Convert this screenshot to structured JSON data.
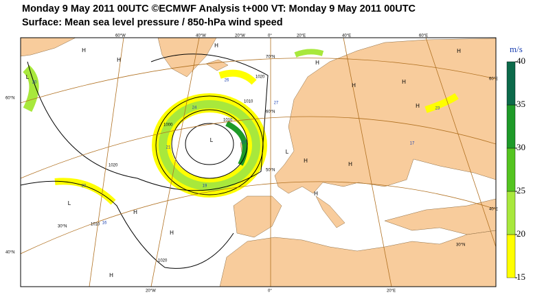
{
  "header": {
    "line1": "Monday 9 May 2011 00UTC ©ECMWF Analysis t+000 VT: Monday 9 May 2011 00UTC",
    "line2": "Surface: Mean sea level pressure / 850-hPa wind speed"
  },
  "colorbar": {
    "unit": "m/s",
    "ticks": [
      15,
      20,
      25,
      30,
      35,
      40
    ],
    "colors": [
      "#ffff00",
      "#a8e83c",
      "#54c420",
      "#1e9a28",
      "#0c6a4a"
    ]
  },
  "map": {
    "graticule": [
      "60°W",
      "40°W",
      "20°W",
      "0°",
      "20°E",
      "40°E",
      "60°E",
      "20°W",
      "0°",
      "20°E",
      "60°N",
      "40°N",
      "60°E",
      "40°E",
      "70°N",
      "60°N",
      "50°N",
      "30°N",
      "30°N"
    ],
    "pressure_centers": [
      "H",
      "H",
      "H",
      "H",
      "H",
      "H",
      "H",
      "H",
      "H",
      "H",
      "H",
      "H",
      "H",
      "H",
      "L",
      "L",
      "L",
      "L"
    ],
    "isobars": [
      "1020",
      "1000",
      "1010",
      "1020",
      "1020",
      "1010",
      "1010"
    ],
    "wind_maxima": [
      "20",
      "24",
      "21",
      "27",
      "19",
      "20",
      "16",
      "23",
      "17",
      "27",
      "26"
    ]
  }
}
